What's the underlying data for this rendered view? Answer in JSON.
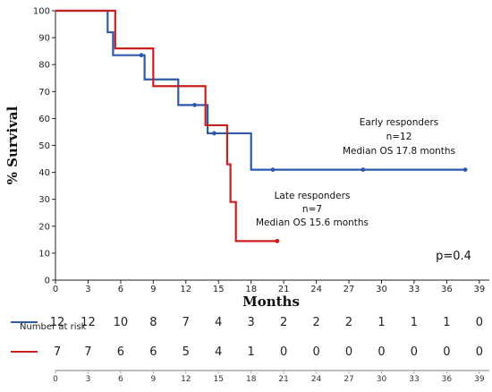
{
  "chart_data": {
    "type": "line",
    "subtype": "kaplan-meier",
    "title": "",
    "xlabel": "Months",
    "ylabel": "% Survival",
    "xlim": [
      0,
      40
    ],
    "ylim": [
      0,
      100
    ],
    "x_ticks": [
      0,
      3,
      6,
      9,
      12,
      15,
      18,
      21,
      24,
      27,
      30,
      33,
      36,
      39
    ],
    "y_ticks": [
      0,
      10,
      20,
      30,
      40,
      50,
      60,
      70,
      80,
      90,
      100
    ],
    "grid": false,
    "series": [
      {
        "name": "Early responders",
        "color": "#2e5aa8",
        "steps": [
          [
            0,
            100
          ],
          [
            4.8,
            92
          ],
          [
            5.3,
            83.5
          ],
          [
            8.2,
            74.5
          ],
          [
            11.3,
            65
          ],
          [
            14.0,
            54.5
          ],
          [
            18.0,
            41
          ],
          [
            37.7,
            41
          ]
        ],
        "censor": [
          [
            7.9,
            83.5
          ],
          [
            12.8,
            65
          ],
          [
            14.6,
            54.5
          ],
          [
            20.0,
            41
          ],
          [
            28.3,
            41
          ],
          [
            37.7,
            41
          ]
        ]
      },
      {
        "name": "Late responders",
        "color": "#c8201f",
        "steps": [
          [
            0,
            100
          ],
          [
            5.5,
            86
          ],
          [
            9.0,
            72
          ],
          [
            13.8,
            57.5
          ],
          [
            15.8,
            43
          ],
          [
            16.1,
            29
          ],
          [
            16.6,
            14.5
          ],
          [
            20.4,
            14.5
          ]
        ],
        "censor": [
          [
            20.4,
            14.5
          ]
        ]
      }
    ],
    "annotations": [
      {
        "lines": [
          "Early responders",
          "n=12",
          "Median OS 17.8 months"
        ],
        "color": "#111"
      },
      {
        "lines": [
          "Late responders",
          "n=7",
          "Median OS 15.6 months"
        ],
        "color": "#111"
      },
      {
        "lines": [
          "p=0.4"
        ],
        "color": "#111"
      }
    ],
    "risk_table": {
      "title": "Number at risk",
      "rows": [
        {
          "color": "#2e5aa8",
          "values": [
            "12",
            "12",
            "10",
            "8",
            "7",
            "4",
            "3",
            "2",
            "2",
            "2",
            "1",
            "1",
            "1",
            "0"
          ]
        },
        {
          "color": "#c8201f",
          "values": [
            "7",
            "7",
            "6",
            "6",
            "5",
            "4",
            "1",
            "0",
            "0",
            "0",
            "0",
            "0",
            "0",
            "0"
          ]
        }
      ]
    }
  }
}
